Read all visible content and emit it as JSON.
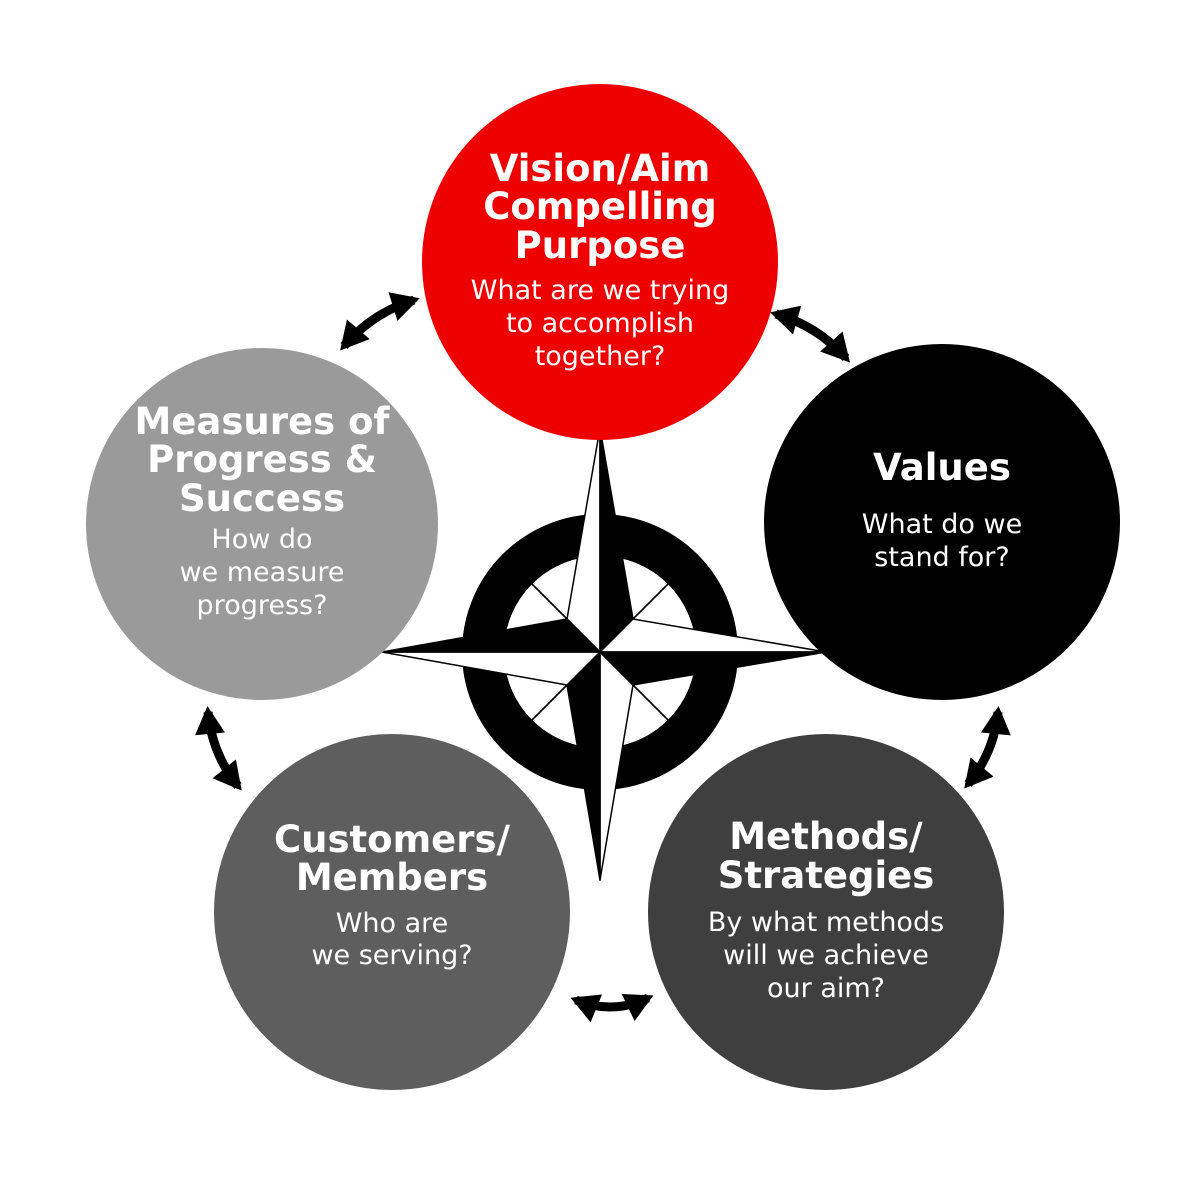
{
  "colors": {
    "vision": "#ee0000",
    "values": "#000000",
    "methods": "#3f3f3f",
    "customers": "#5e5e5e",
    "measures": "#9a9a9a",
    "compass": "#000000",
    "arrow": "#000000"
  },
  "nodes": {
    "vision": {
      "title_lines": [
        "Vision/Aim",
        "Compelling",
        "Purpose"
      ],
      "question_lines": [
        "What are we trying",
        "to accomplish",
        "together?"
      ]
    },
    "values": {
      "title_lines": [
        "Values"
      ],
      "question_lines": [
        "What do we",
        "stand for?"
      ]
    },
    "methods": {
      "title_lines": [
        "Methods/",
        "Strategies"
      ],
      "question_lines": [
        "By what methods",
        "will we achieve",
        "our aim?"
      ]
    },
    "customers": {
      "title_lines": [
        "Customers/",
        "Members"
      ],
      "question_lines": [
        "Who are",
        "we serving?"
      ]
    },
    "measures": {
      "title_lines": [
        "Measures of",
        "Progress &",
        "Success"
      ],
      "question_lines": [
        "How do",
        "we measure",
        "progress?"
      ]
    }
  },
  "icons": {
    "center": "compass-rose-icon",
    "connector": "double-headed-curved-arrow-icon"
  }
}
